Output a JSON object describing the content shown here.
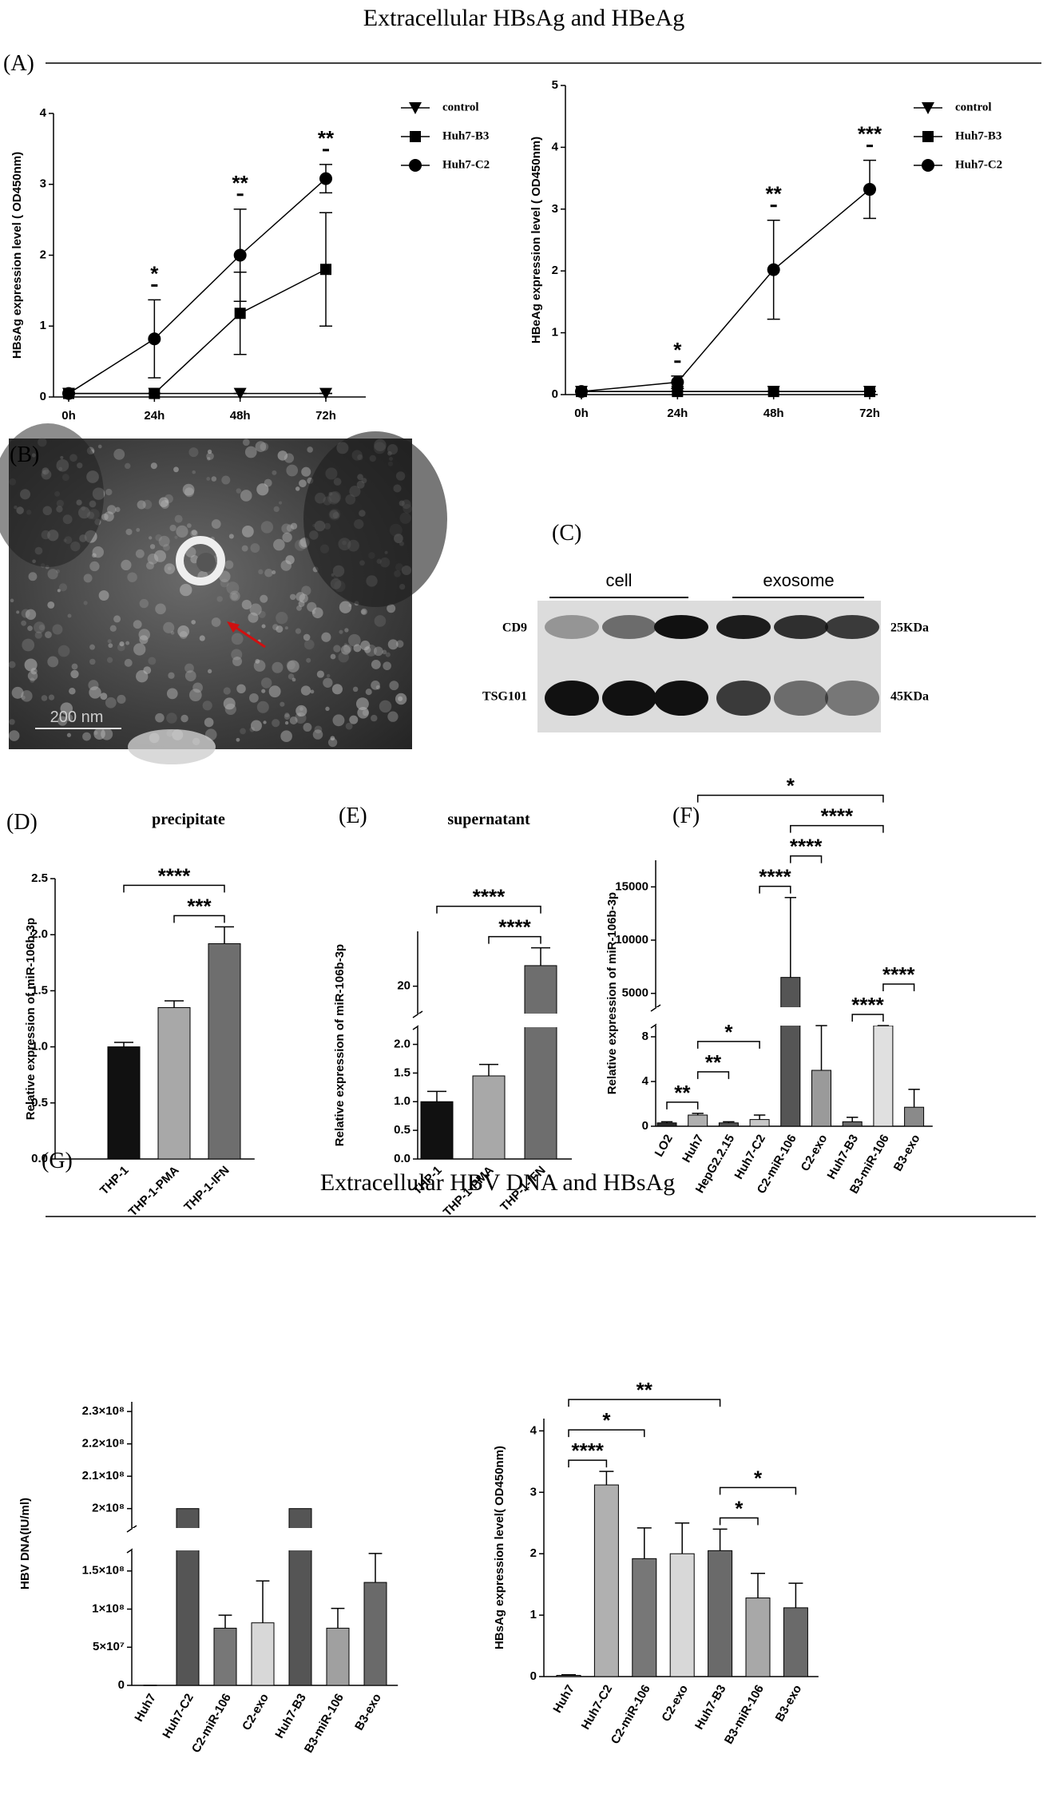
{
  "figure": {
    "title": "Extracellular HBsAg and HBeAg",
    "title_g": "Extracellular HBV DNA and HBsAg",
    "panels": [
      "(A)",
      "(B)",
      "(C)",
      "(D)",
      "(E)",
      "(F)",
      "(G)"
    ],
    "scale_bar": "200 nm",
    "blot": {
      "groups": [
        "cell",
        "exosome"
      ],
      "rows": [
        "CD9",
        "TSG101"
      ],
      "sizes": [
        "25KDa",
        "45KDa"
      ]
    }
  },
  "chart_data": [
    {
      "type": "line",
      "ylabel": "HBsAg expression level ( OD450nm)",
      "categories": [
        "0h",
        "24h",
        "48h",
        "72h"
      ],
      "ylim": [
        0,
        4
      ],
      "yticks": [
        0,
        1,
        2,
        3,
        4
      ],
      "series": [
        {
          "name": "control",
          "marker": "triangle-down",
          "color": "#000000",
          "values": [
            0.05,
            0.05,
            0.05,
            0.05
          ],
          "errors": [
            0,
            0,
            0,
            0
          ]
        },
        {
          "name": "Huh7-B3",
          "marker": "square",
          "color": "#000000",
          "values": [
            0.05,
            0.05,
            1.18,
            1.8
          ],
          "errors": [
            0,
            0,
            0.58,
            0.8
          ]
        },
        {
          "name": "Huh7-C2",
          "marker": "circle",
          "color": "#000000",
          "values": [
            0.05,
            0.82,
            2.0,
            3.08
          ],
          "errors": [
            0,
            0.55,
            0.65,
            0.2
          ]
        }
      ],
      "annotations": [
        null,
        "*",
        "**",
        "**"
      ]
    },
    {
      "type": "line",
      "ylabel": "HBeAg expression level ( OD450nm)",
      "categories": [
        "0h",
        "24h",
        "48h",
        "72h"
      ],
      "ylim": [
        0,
        5
      ],
      "yticks": [
        0,
        1,
        2,
        3,
        4,
        5
      ],
      "series": [
        {
          "name": "control",
          "marker": "triangle-down",
          "color": "#000000",
          "values": [
            0.05,
            0.05,
            0.05,
            0.05
          ],
          "errors": [
            0,
            0,
            0,
            0
          ]
        },
        {
          "name": "Huh7-B3",
          "marker": "square",
          "color": "#000000",
          "values": [
            0.05,
            0.05,
            0.05,
            0.05
          ],
          "errors": [
            0,
            0,
            0,
            0
          ]
        },
        {
          "name": "Huh7-C2",
          "marker": "circle",
          "color": "#000000",
          "values": [
            0.05,
            0.2,
            2.02,
            3.32
          ],
          "errors": [
            0,
            0.1,
            0.8,
            0.47
          ]
        }
      ],
      "annotations": [
        null,
        "*",
        "**",
        "***"
      ]
    },
    {
      "type": "bar",
      "title": "precipitate",
      "ylabel": "Relative expression of miR-106b-3p",
      "categories": [
        "THP-1",
        "THP-1-PMA",
        "THP-1-IFN"
      ],
      "values": [
        1.0,
        1.35,
        1.92
      ],
      "errors": [
        0.04,
        0.06,
        0.15
      ],
      "colors": [
        "#111111",
        "#a8a8a8",
        "#6e6e6e"
      ],
      "ylim": [
        0,
        2.5
      ],
      "yticks": [
        {
          "value": 0,
          "label": "0.0"
        },
        0.5,
        {
          "value": 1,
          "label": "1.0"
        },
        1.5,
        {
          "value": 2,
          "label": "2.0"
        },
        2.5
      ],
      "xtick_rotation": -45,
      "brackets": [
        {
          "from": 1,
          "to": 2,
          "label": "***"
        },
        {
          "from": 0,
          "to": 2,
          "label": "****"
        }
      ]
    },
    {
      "type": "bar",
      "title": "supernatant",
      "ylabel": "Relative expression of miR-106b-3p",
      "categories": [
        "THP-1",
        "THP-1-PMA",
        "THP-1-IFN"
      ],
      "values": [
        1.0,
        1.45,
        21.5
      ],
      "errors": [
        0.18,
        0.2,
        1.3
      ],
      "colors": [
        "#111111",
        "#a8a8a8",
        "#6e6e6e"
      ],
      "ysegments": [
        {
          "ylim": [
            0,
            2.3
          ],
          "yticks": [
            {
              "value": 0,
              "label": "0.0"
            },
            0.5,
            {
              "value": 1,
              "label": "1.0"
            },
            1.5,
            {
              "value": 2,
              "label": "2.0"
            }
          ]
        },
        {
          "ylim": [
            18,
            24
          ],
          "yticks": [
            20
          ]
        }
      ],
      "xtick_rotation": -45,
      "brackets": [
        {
          "from": 1,
          "to": 2,
          "label": "****"
        },
        {
          "from": 0,
          "to": 2,
          "label": "****"
        }
      ]
    },
    {
      "type": "bar",
      "ylabel": "Relative expression of miR-106b-3p",
      "categories": [
        "LO2",
        "Huh7",
        "HepG2.2.15",
        "Huh7-C2",
        "C2-miR-106",
        "C2-exo",
        "Huh7-B3",
        "B3-miR-106",
        "B3-exo"
      ],
      "values": [
        0.3,
        1.0,
        0.3,
        0.6,
        6500,
        5.0,
        0.4,
        1000,
        1.7
      ],
      "errors": [
        0.1,
        0.15,
        0.1,
        0.4,
        7500,
        4.5,
        0.4,
        300,
        1.6
      ],
      "colors": [
        "#2b2b2b",
        "#b0b0b0",
        "#555555",
        "#c8c8c8",
        "#555555",
        "#9a9a9a",
        "#6a6a6a",
        "#e0e0e0",
        "#8a8a8a"
      ],
      "ysegments": [
        {
          "ylim": [
            0,
            9
          ],
          "yticks": [
            0,
            4,
            8
          ]
        },
        {
          "ylim": [
            3700,
            17500
          ],
          "yticks": [
            5000,
            10000,
            15000
          ]
        }
      ],
      "xtick_rotation": -60,
      "brackets": [
        {
          "from": 0,
          "to": 1,
          "label": "**"
        },
        {
          "from": 1,
          "to": 2,
          "label": "**"
        },
        {
          "from": 1,
          "to": 3,
          "label": "*"
        },
        {
          "from": 3,
          "to": 4,
          "label": "****"
        },
        {
          "from": 6,
          "to": 7,
          "label": "****"
        },
        {
          "from": 7,
          "to": 8,
          "label": "****"
        },
        {
          "from": 4,
          "to": 5,
          "label": "****"
        },
        {
          "from": 4,
          "to": 7,
          "label": "****"
        },
        {
          "from": 1,
          "to": 7,
          "label": "*"
        }
      ]
    },
    {
      "type": "bar",
      "ylabel": "HBV DNA(IU/ml)",
      "categories": [
        "Huh7",
        "Huh7-C2",
        "C2-miR-106",
        "C2-exo",
        "Huh7-B3",
        "B3-miR-106",
        "B3-exo"
      ],
      "values": [
        0,
        200000000,
        75000000,
        82000000,
        200000000,
        75000000,
        135000000
      ],
      "errors": [
        0,
        null,
        17000000,
        55000000,
        null,
        26000000,
        38000000
      ],
      "colors": [
        "#888888",
        "#555555",
        "#777777",
        "#d8d8d8",
        "#555555",
        "#a0a0a0",
        "#6a6a6a"
      ],
      "ysegments": [
        {
          "ylim": [
            0,
            177000000
          ],
          "yticks": [
            0,
            {
              "value": 50000000,
              "label": "5×10⁷"
            },
            {
              "value": 100000000,
              "label": "1×10⁸"
            },
            {
              "value": 150000000,
              "label": "1.5×10⁸"
            }
          ]
        },
        {
          "ylim": [
            194000000,
            233000000
          ],
          "yticks": [
            {
              "value": 200000000,
              "label": "2×10⁸"
            },
            {
              "value": 210000000,
              "label": "2.1×10⁸"
            },
            {
              "value": 220000000,
              "label": "2.2×10⁸"
            },
            {
              "value": 230000000,
              "label": "2.3×10⁸"
            }
          ]
        }
      ],
      "xtick_rotation": -60
    },
    {
      "type": "bar",
      "ylabel": "HBsAg expression level( OD450nm)",
      "categories": [
        "Huh7",
        "Huh7-C2",
        "C2-miR-106",
        "C2-exo",
        "Huh7-B3",
        "B3-miR-106",
        "B3-exo"
      ],
      "values": [
        0.02,
        3.12,
        1.92,
        2.0,
        2.05,
        1.28,
        1.12
      ],
      "errors": [
        0.01,
        0.22,
        0.5,
        0.5,
        0.35,
        0.4,
        0.4
      ],
      "colors": [
        "#888888",
        "#b0b0b0",
        "#777777",
        "#d8d8d8",
        "#6a6a6a",
        "#a8a8a8",
        "#6a6a6a"
      ],
      "ylim": [
        0,
        4.2
      ],
      "yticks": [
        0,
        1,
        2,
        3,
        4
      ],
      "xtick_rotation": -60,
      "brackets": [
        {
          "from": 0,
          "to": 1,
          "label": "****"
        },
        {
          "from": 4,
          "to": 5,
          "label": "*"
        },
        {
          "from": 4,
          "to": 6,
          "label": "*"
        },
        {
          "from": 0,
          "to": 2,
          "label": "*"
        },
        {
          "from": 0,
          "to": 4,
          "label": "**"
        }
      ]
    }
  ]
}
